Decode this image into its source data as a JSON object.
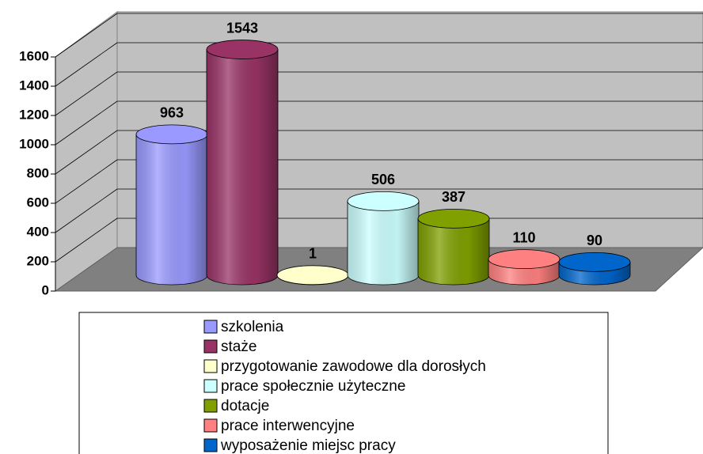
{
  "chart_data": {
    "type": "bar3d",
    "series": [
      {
        "name": "szkolenia",
        "color": "#9999ff",
        "values": [
          963
        ]
      },
      {
        "name": "staże",
        "color": "#993366",
        "values": [
          1543
        ]
      },
      {
        "name": "przygotowanie zawodowe dla dorosłych",
        "color": "#ffffcc",
        "values": [
          1
        ]
      },
      {
        "name": "prace społecznie użyteczne",
        "color": "#ccffff",
        "values": [
          506
        ]
      },
      {
        "name": "dotacje",
        "color": "#80a000",
        "values": [
          387
        ]
      },
      {
        "name": "prace interwencyjne",
        "color": "#ff8080",
        "values": [
          110
        ]
      },
      {
        "name": "wyposażenie miejsc pracy",
        "color": "#0066cc",
        "values": [
          90
        ]
      }
    ],
    "ylim": [
      0,
      1600
    ],
    "yticks": [
      0,
      200,
      400,
      600,
      800,
      1000,
      1200,
      1400,
      1600
    ],
    "grid": true,
    "legend": "bottom"
  }
}
